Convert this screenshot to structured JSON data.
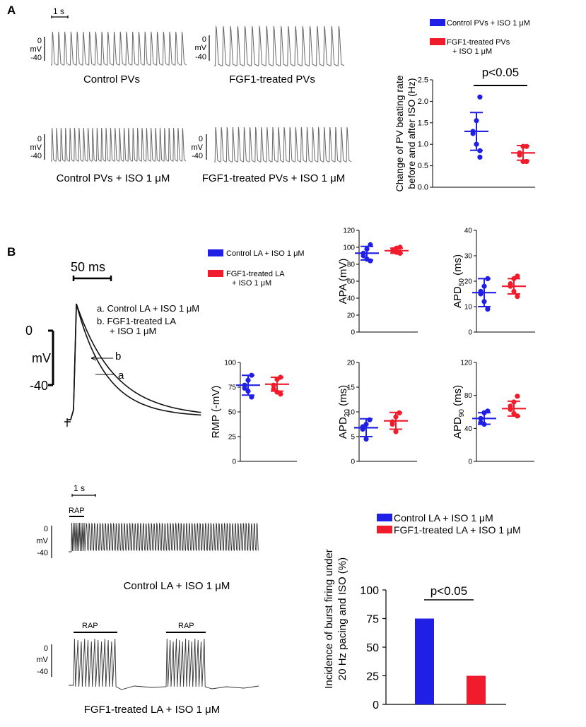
{
  "panels": {
    "a": "A",
    "b": "B"
  },
  "colors": {
    "control": "#1f1fe6",
    "fgf1": "#f01c2c",
    "trace": "#555555",
    "axis": "#000000"
  },
  "panelA": {
    "scale": "1 s",
    "volt_top": "0",
    "volt_mid": "mV",
    "volt_bot": "-40",
    "traces": [
      {
        "label": "Control PVs",
        "spikes": 22
      },
      {
        "label": "FGF1-treated PVs",
        "spikes": 18
      },
      {
        "label": "Control PVs + ISO 1 μM",
        "spikes": 30
      },
      {
        "label": "FGF1-treated PVs + ISO 1 μM",
        "spikes": 24
      }
    ],
    "legend": [
      {
        "label": "Control PVs + ISO 1 μM"
      },
      {
        "label1": "FGF1-treated PVs",
        "label2": "+ ISO 1 μM"
      }
    ]
  },
  "panelB": {
    "ap": {
      "scale": "50 ms",
      "volt_top": "0",
      "volt_mid": "mV",
      "volt_bot": "-40",
      "trace_a": "a. Control LA + ISO 1 μM",
      "trace_b1": "b. FGF1-treated LA",
      "trace_b2": "+ ISO 1 μM",
      "marker_a": "a",
      "marker_b": "b"
    },
    "legend": [
      {
        "label": "Control LA + ISO 1 μM"
      },
      {
        "label1": "FGF1-treated LA",
        "label2": "+ ISO 1 μM"
      }
    ],
    "rap": {
      "scale": "1 s",
      "rap": "RAP",
      "volt_top": "0",
      "volt_mid": "mV",
      "volt_bot": "-40",
      "control_label": "Control LA + ISO 1 μM",
      "fgf_label": "FGF1-treated LA + ISO 1 μM"
    },
    "bar_legend": [
      "Control LA + ISO 1 μM",
      "FGF1-treated LA + ISO 1 μM"
    ]
  },
  "chart_data": [
    {
      "id": "pv-rate",
      "type": "scatter",
      "ylabel1": "Change of PV beating rate",
      "ylabel2": "before and after ISO (Hz)",
      "ylim": [
        0,
        2.5
      ],
      "ticks": [
        "0.0",
        "0.5",
        "1.0",
        "1.5",
        "2.0",
        "2.5"
      ],
      "annotation": "p<0.05",
      "series": [
        {
          "name": "Control PVs + ISO 1 μM",
          "points": [
            2.1,
            1.55,
            1.3,
            1.25,
            1.0,
            0.85,
            0.7
          ],
          "mean": 1.3,
          "sd": 0.44
        },
        {
          "name": "FGF1-treated PVs + ISO 1 μM",
          "points": [
            0.95,
            0.95,
            0.8,
            0.75,
            0.6,
            0.6
          ],
          "mean": 0.8,
          "sd": 0.17
        }
      ]
    },
    {
      "id": "apa",
      "type": "scatter",
      "ylabel": "APA (mV)",
      "ylim": [
        0,
        120
      ],
      "ticks": [
        "0",
        "20",
        "40",
        "60",
        "80",
        "100",
        "120"
      ],
      "series": [
        {
          "name": "Control LA + ISO 1 μM",
          "points": [
            103,
            98,
            93,
            90,
            86,
            84
          ],
          "mean": 93,
          "sd": 8
        },
        {
          "name": "FGF1-treated LA + ISO 1 μM",
          "points": [
            100,
            99,
            97,
            95,
            94,
            93
          ],
          "mean": 96,
          "sd": 3
        }
      ]
    },
    {
      "id": "apd50",
      "type": "scatter",
      "ylabel_main": "APD",
      "ylabel_sub": "50",
      "ylabel_unit": " (ms)",
      "ylim": [
        0,
        40
      ],
      "ticks": [
        "0",
        "10",
        "20",
        "30",
        "40"
      ],
      "series": [
        {
          "name": "Control LA + ISO 1 μM",
          "points": [
            21,
            18,
            16,
            15,
            12,
            9
          ],
          "mean": 15.5,
          "sd": 5.5
        },
        {
          "name": "FGF1-treated LA + ISO 1 μM",
          "points": [
            22,
            21,
            19,
            18,
            16,
            14
          ],
          "mean": 18,
          "sd": 3
        }
      ]
    },
    {
      "id": "rmp",
      "type": "scatter",
      "ylabel": "RMP (-mV)",
      "ylim": [
        0,
        100
      ],
      "ticks": [
        "0",
        "25",
        "50",
        "75",
        "100"
      ],
      "series": [
        {
          "name": "Control LA + ISO 1 μM",
          "points": [
            87,
            82,
            77,
            74,
            71,
            65
          ],
          "mean": 77,
          "sd": 10
        },
        {
          "name": "FGF1-treated LA + ISO 1 μM",
          "points": [
            85,
            83,
            77,
            73,
            70,
            68
          ],
          "mean": 78,
          "sd": 7
        }
      ]
    },
    {
      "id": "apd20",
      "type": "scatter",
      "ylabel_main": "APD",
      "ylabel_sub": "20",
      "ylabel_unit": " (ms)",
      "ylim": [
        0,
        20
      ],
      "ticks": [
        "0",
        "5",
        "10",
        "15",
        "20"
      ],
      "series": [
        {
          "name": "Control LA + ISO 1 μM",
          "points": [
            8.4,
            7.5,
            7.0,
            6.5,
            4.5
          ],
          "mean": 6.8,
          "sd": 1.8
        },
        {
          "name": "FGF1-treated LA + ISO 1 μM",
          "points": [
            9.8,
            9.0,
            8.0,
            7.5,
            6.0
          ],
          "mean": 8.2,
          "sd": 1.7
        }
      ]
    },
    {
      "id": "apd90",
      "type": "scatter",
      "ylabel_main": "APD",
      "ylabel_sub": "90",
      "ylabel_unit": " (ms)",
      "ylim": [
        0,
        120
      ],
      "ticks": [
        "0",
        "40",
        "80",
        "120"
      ],
      "series": [
        {
          "name": "Control LA + ISO 1 μM",
          "points": [
            61,
            59,
            52,
            47,
            45
          ],
          "mean": 52,
          "sd": 7
        },
        {
          "name": "FGF1-treated LA + ISO 1 μM",
          "points": [
            79,
            72,
            67,
            63,
            58,
            55
          ],
          "mean": 64,
          "sd": 9
        }
      ]
    },
    {
      "id": "burst",
      "type": "bar",
      "ylabel1": "Incidence of burst firing under",
      "ylabel2": "20 Hz pacing and ISO (%)",
      "ylim": [
        0,
        100
      ],
      "ticks": [
        "0",
        "25",
        "50",
        "75",
        "100"
      ],
      "annotation": "p<0.05",
      "categories": [
        "Control LA + ISO 1 μM",
        "FGF1-treated LA + ISO 1 μM"
      ],
      "values": [
        75,
        25
      ]
    }
  ]
}
